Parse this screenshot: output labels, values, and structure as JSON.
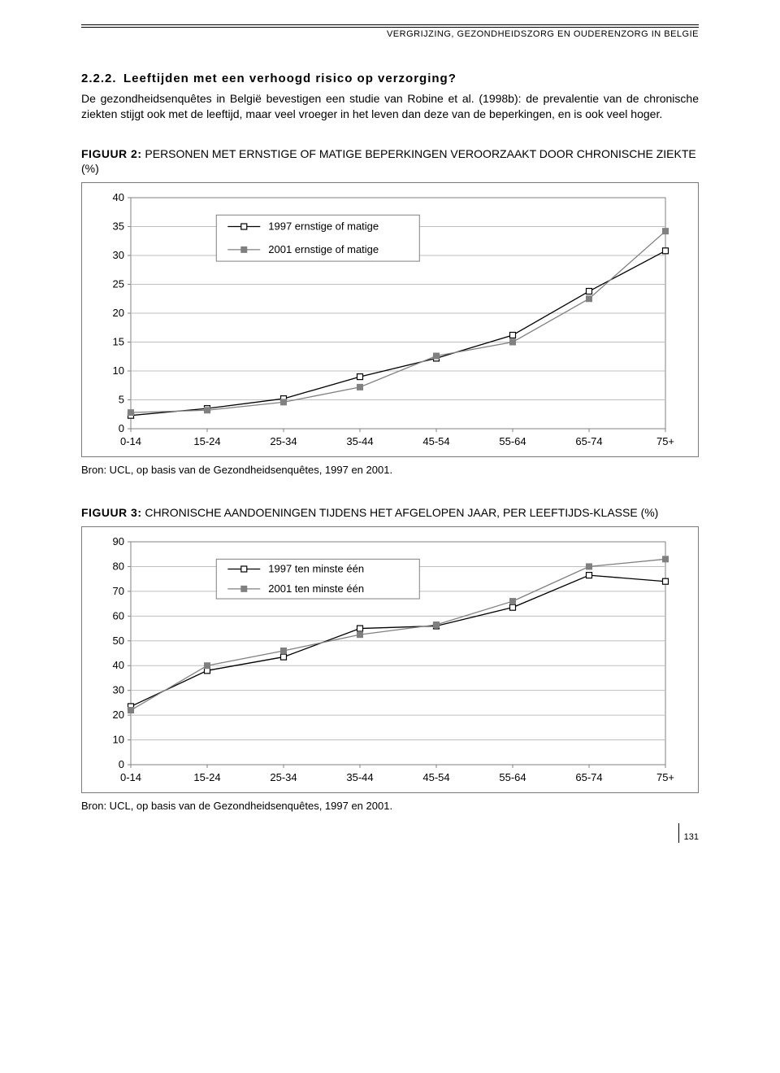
{
  "header": {
    "running_title": "VERGRIJZING, GEZONDHEIDSZORG EN OUDERENZORG IN BELGIE"
  },
  "section": {
    "number": "2.2.2.",
    "title": "Leeftijden met een verhoogd risico op verzorging?",
    "body": "De gezondheidsenquêtes in België bevestigen een studie van Robine et al. (1998b): de prevalentie van de chronische ziekten stijgt ook met de leeftijd, maar veel vroeger in het leven dan deze van de beperkingen, en is ook veel hoger."
  },
  "figure2": {
    "caption_bold": "FIGUUR 2:",
    "caption_rest": " PERSONEN MET ERNSTIGE OF MATIGE BEPERKINGEN VEROORZAAKT DOOR CHRONISCHE ZIEKTE (%)",
    "source": "Bron: UCL, op basis van de Gezondheidsenquêtes, 1997 en 2001.",
    "type": "line",
    "categories": [
      "0-14",
      "15-24",
      "25-34",
      "35-44",
      "45-54",
      "55-64",
      "65-74",
      "75+"
    ],
    "series": [
      {
        "name": "1997 ernstige of matige",
        "marker": "open-square",
        "color": "#000000",
        "values": [
          2.3,
          3.5,
          5.2,
          9.0,
          12.2,
          16.2,
          23.8,
          30.8
        ]
      },
      {
        "name": "2001 ernstige of matige",
        "marker": "filled-square",
        "color": "#808080",
        "values": [
          2.8,
          3.2,
          4.6,
          7.2,
          12.6,
          15.0,
          22.5,
          34.2
        ]
      }
    ],
    "ylim": [
      0,
      40
    ],
    "ytick_step": 5,
    "grid_color": "#bfbfbf",
    "axis_color": "#808080",
    "bg": "#ffffff",
    "font_size_axis": 13,
    "font_size_legend": 13,
    "marker_size": 7,
    "line_width": 1.3
  },
  "figure3": {
    "caption_bold": "FIGUUR 3:",
    "caption_rest": " CHRONISCHE AANDOENINGEN TIJDENS HET AFGELOPEN JAAR, PER LEEFTIJDS-KLASSE (%)",
    "source": "Bron: UCL, op basis van de Gezondheidsenquêtes, 1997 en 2001.",
    "type": "line",
    "categories": [
      "0-14",
      "15-24",
      "25-34",
      "35-44",
      "45-54",
      "55-64",
      "65-74",
      "75+"
    ],
    "series": [
      {
        "name": "1997 ten minste één",
        "marker": "open-square",
        "color": "#000000",
        "values": [
          23.5,
          38.0,
          43.5,
          55.0,
          56.0,
          63.5,
          76.5,
          74.0
        ]
      },
      {
        "name": "2001 ten minste één",
        "marker": "filled-square",
        "color": "#808080",
        "values": [
          22.0,
          40.0,
          46.0,
          52.5,
          56.5,
          66.0,
          80.0,
          83.0
        ]
      }
    ],
    "ylim": [
      0,
      90
    ],
    "ytick_step": 10,
    "grid_color": "#bfbfbf",
    "axis_color": "#808080",
    "bg": "#ffffff",
    "font_size_axis": 13,
    "font_size_legend": 13,
    "marker_size": 7,
    "line_width": 1.3
  },
  "footer": {
    "page_number": "131"
  }
}
